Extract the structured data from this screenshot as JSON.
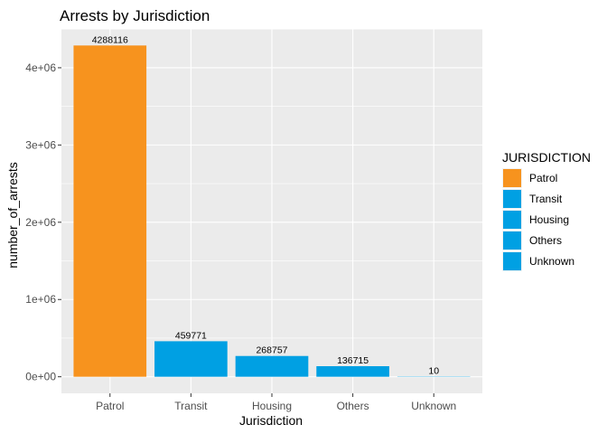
{
  "chart_data": {
    "type": "bar",
    "title": "Arrests by Jurisdiction",
    "xlabel": "Jurisdiction",
    "ylabel": "number_of_arrests",
    "categories": [
      "Patrol",
      "Transit",
      "Housing",
      "Others",
      "Unknown"
    ],
    "values": [
      4288116,
      459771,
      268757,
      136715,
      10
    ],
    "data_labels": [
      "4288116",
      "459771",
      "268757",
      "136715",
      "10"
    ],
    "bar_colors": [
      "#F7931E",
      "#00A0E3",
      "#00A0E3",
      "#00A0E3",
      "#00A0E3"
    ],
    "ylim": [
      -214405.8,
      4502521.8
    ],
    "y_ticks": [
      0,
      1000000,
      2000000,
      3000000,
      4000000
    ],
    "y_tick_labels": [
      "0e+00",
      "1e+06",
      "2e+06",
      "3e+06",
      "4e+06"
    ],
    "grid": true,
    "panel_background": "#EBEBEB",
    "legend": {
      "title": "JURISDICTION",
      "position": "right",
      "items": [
        {
          "label": "Patrol",
          "color": "#F7931E"
        },
        {
          "label": "Transit",
          "color": "#00A0E3"
        },
        {
          "label": "Housing",
          "color": "#00A0E3"
        },
        {
          "label": "Others",
          "color": "#00A0E3"
        },
        {
          "label": "Unknown",
          "color": "#00A0E3"
        }
      ]
    }
  }
}
